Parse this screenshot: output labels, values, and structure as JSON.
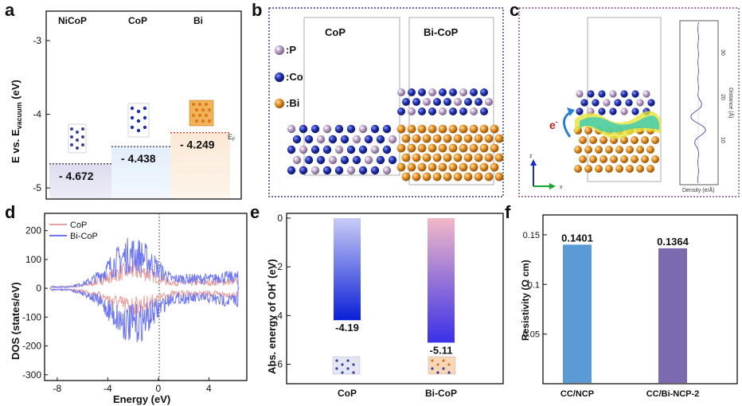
{
  "panels": {
    "a": "a",
    "b": "b",
    "c": "c",
    "d": "d",
    "e": "e",
    "f": "f"
  },
  "panel_a": {
    "headers": [
      "NiCoP",
      "CoP",
      "Bi"
    ],
    "ylabel_main": "E vs. E",
    "ylabel_sub": "vacuum",
    "ylabel_unit": " (eV)",
    "ticks": [
      "-3",
      "-4",
      "-5"
    ],
    "values_text": [
      "- 4.672",
      "- 4.438",
      "- 4.249"
    ],
    "marker": "E",
    "marker_sub": "F",
    "chart_data": {
      "type": "bar",
      "categories": [
        "NiCoP",
        "CoP",
        "Bi"
      ],
      "values": [
        -4.672,
        -4.438,
        -4.249
      ],
      "ylim": [
        -5.15,
        -2.6
      ],
      "ylabel": "E vs. E vacuum (eV)"
    }
  },
  "panel_b": {
    "legend": [
      ":P",
      ":Co",
      ":Bi"
    ],
    "titles": [
      "CoP",
      "Bi-CoP"
    ],
    "colors": {
      "P": "#b49ac2",
      "Co": "#1f2fa8",
      "Bi": "#e08a1e"
    }
  },
  "panel_c": {
    "electron": "e",
    "electron_sup": "-",
    "inset_ylabel": "Distance (Å)",
    "inset_xlabel": "Density (e/Å)",
    "inset_ticks": [
      "30",
      "20",
      "10"
    ],
    "axis_z": "z",
    "axis_x": "x"
  },
  "panel_d": {
    "ylabel": "DOS (states/eV)",
    "xlabel": "Energy (eV)",
    "xticks": [
      "-8",
      "-4",
      "0",
      "4"
    ],
    "yticks": [
      "200",
      "100",
      "0",
      "-100",
      "-200",
      "-300"
    ],
    "legend": [
      "CoP",
      "Bi-CoP"
    ],
    "colors": {
      "CoP": "#e8a3a0",
      "Bi-CoP": "#6f78f0"
    }
  },
  "panel_e": {
    "ylabel": "Abs. energy of OH",
    "ylabel_sup": "*",
    "ylabel_unit": " (eV)",
    "yticks": [
      "0",
      "-2",
      "-4",
      "-6"
    ],
    "values_text": [
      "-4.19",
      "-5.11"
    ],
    "categories": [
      "CoP",
      "Bi-CoP"
    ],
    "chart_data": {
      "type": "bar",
      "categories": [
        "CoP",
        "Bi-CoP"
      ],
      "values": [
        -4.19,
        -5.11
      ],
      "ylim": [
        -6.6,
        0
      ],
      "ylabel": "Abs. energy of OH* (eV)"
    }
  },
  "panel_f": {
    "ylabel": "Resistivity (Ω cm)",
    "yticks": [
      "0.15",
      "0.1",
      "0.05"
    ],
    "values_text": [
      "0.1401",
      "0.1364"
    ],
    "categories": [
      "CC/NCP",
      "CC/Bi-NCP-2"
    ],
    "colors": [
      "#5b9bd5",
      "#7b6aae"
    ],
    "chart_data": {
      "type": "bar",
      "categories": [
        "CC/NCP",
        "CC/Bi-NCP-2"
      ],
      "values": [
        0.1401,
        0.1364
      ],
      "ylim": [
        0,
        0.17
      ],
      "ylabel": "Resistivity (Ω cm)"
    }
  }
}
